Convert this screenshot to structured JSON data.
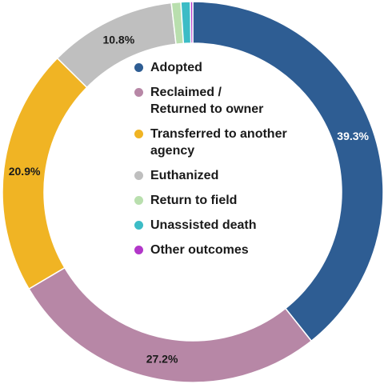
{
  "chart_data": {
    "type": "pie",
    "donut": true,
    "title": "",
    "legend_position": "center",
    "series": [
      {
        "name": "Adopted",
        "value": 39.3,
        "label": "39.3%",
        "color": "#2e5d93",
        "label_color": "#ffffff"
      },
      {
        "name": "Reclaimed / Returned to owner",
        "value": 27.2,
        "label": "27.2%",
        "color": "#b787a6",
        "label_color": "#1a1a1a"
      },
      {
        "name": "Transferred to another agency",
        "value": 20.9,
        "label": "20.9%",
        "color": "#f0b424",
        "label_color": "#1a1a1a"
      },
      {
        "name": "Euthanized",
        "value": 10.8,
        "label": "10.8%",
        "color": "#bfbfbf",
        "label_color": "#1a1a1a"
      },
      {
        "name": "Return to field",
        "value": 0.8,
        "label": "",
        "color": "#b9dfae",
        "label_color": "#1a1a1a"
      },
      {
        "name": "Unassisted death",
        "value": 0.8,
        "label": "",
        "color": "#3cbcc6",
        "label_color": "#1a1a1a"
      },
      {
        "name": "Other outcomes",
        "value": 0.2,
        "label": "",
        "color": "#b237c9",
        "label_color": "#1a1a1a"
      }
    ]
  }
}
